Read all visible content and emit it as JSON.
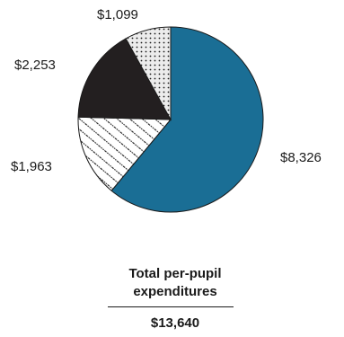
{
  "chart_data": {
    "type": "pie",
    "slices": [
      {
        "label": "$8,326",
        "value": 8326,
        "color": "#1a6e95",
        "pattern": "solid"
      },
      {
        "label": "$1,963",
        "value": 1963,
        "color": "#ffffff",
        "pattern": "diagonal-stripes"
      },
      {
        "label": "$2,253",
        "value": 2253,
        "color": "#231f20",
        "pattern": "solid"
      },
      {
        "label": "$1,099",
        "value": 1099,
        "color": "#e8e8e8",
        "pattern": "dots"
      }
    ]
  },
  "total": {
    "title": "Total per-pupil expenditures",
    "value": "$13,640"
  }
}
